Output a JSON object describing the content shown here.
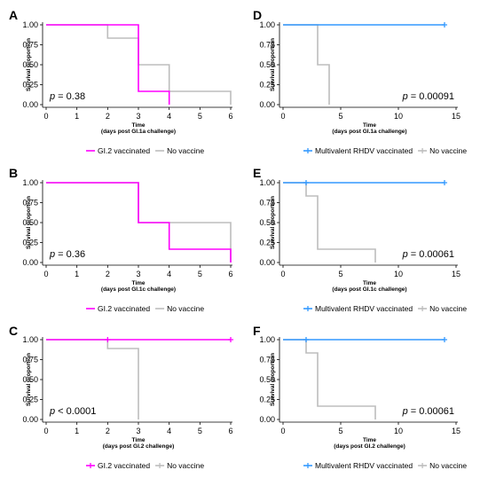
{
  "chart_data": [
    {
      "panel_letter": "A",
      "type": "line",
      "xlabel": "Time",
      "xlabel_sub": "(days post GI.1a challenge)",
      "ylabel": "Survival proportion",
      "xlim": [
        0,
        6
      ],
      "xticks": [
        0,
        1,
        2,
        3,
        4,
        5,
        6
      ],
      "ylim": [
        0,
        1
      ],
      "yticks": [
        "0.00",
        "0.25",
        "0.50",
        "0.75",
        "1.00"
      ],
      "p_prefix": "p",
      "p_op": "=",
      "p_value": "0.38",
      "series": [
        {
          "name": "GI.2 vaccinated",
          "color": "#ff00ff",
          "step_x": [
            0,
            3,
            3,
            4,
            4
          ],
          "step_y": [
            1,
            1,
            0.1667,
            0.1667,
            0
          ]
        },
        {
          "name": "No vaccine",
          "color": "#bdbdbd",
          "step_x": [
            0,
            2,
            2,
            3,
            3,
            4,
            4,
            6,
            6
          ],
          "step_y": [
            1,
            1,
            0.8333,
            0.8333,
            0.5,
            0.5,
            0.1667,
            0.1667,
            0
          ]
        }
      ]
    },
    {
      "panel_letter": "B",
      "type": "line",
      "xlabel": "Time",
      "xlabel_sub": "(days post GI.1c challenge)",
      "ylabel": "Survival proportion",
      "xlim": [
        0,
        6
      ],
      "xticks": [
        0,
        1,
        2,
        3,
        4,
        5,
        6
      ],
      "ylim": [
        0,
        1
      ],
      "yticks": [
        "0.00",
        "0.25",
        "0.50",
        "0.75",
        "1.00"
      ],
      "p_prefix": "p",
      "p_op": "=",
      "p_value": "0.36",
      "series": [
        {
          "name": "GI.2 vaccinated",
          "color": "#ff00ff",
          "step_x": [
            0,
            3,
            3,
            4,
            4,
            6,
            6
          ],
          "step_y": [
            1,
            1,
            0.5,
            0.5,
            0.1667,
            0.1667,
            0
          ]
        },
        {
          "name": "No vaccine",
          "color": "#bdbdbd",
          "step_x": [
            0,
            3,
            3,
            6,
            6
          ],
          "step_y": [
            1,
            1,
            0.5,
            0.5,
            0
          ]
        }
      ]
    },
    {
      "panel_letter": "C",
      "type": "line",
      "xlabel": "Time",
      "xlabel_sub": "(days post GI.2 challenge)",
      "ylabel": "Survival proportion",
      "xlim": [
        0,
        6
      ],
      "xticks": [
        0,
        1,
        2,
        3,
        4,
        5,
        6
      ],
      "ylim": [
        0,
        1
      ],
      "yticks": [
        "0.00",
        "0.25",
        "0.50",
        "0.75",
        "1.00"
      ],
      "p_prefix": "p",
      "p_op": "<",
      "p_value": "0.0001",
      "series": [
        {
          "name": "GI.2 vaccinated",
          "color": "#ff00ff",
          "step_x": [
            0,
            6
          ],
          "step_y": [
            1,
            1
          ],
          "censor_x": [
            2,
            6
          ],
          "censor_y": [
            1,
            1
          ]
        },
        {
          "name": "No vaccine",
          "color": "#bdbdbd",
          "step_x": [
            0,
            2,
            2,
            3,
            3
          ],
          "step_y": [
            1,
            1,
            0.8889,
            0.8889,
            0
          ]
        }
      ]
    },
    {
      "panel_letter": "D",
      "type": "line",
      "xlabel": "Time",
      "xlabel_sub": "(days post GI.1a challenge)",
      "ylabel": "Survival proportion",
      "xlim": [
        0,
        15
      ],
      "xticks": [
        0,
        5,
        10,
        15
      ],
      "ylim": [
        0,
        1
      ],
      "yticks": [
        "0.00",
        "0.25",
        "0.50",
        "0.75",
        "1.00"
      ],
      "p_prefix": "p",
      "p_op": "=",
      "p_value": "0.00091",
      "series": [
        {
          "name": "Multivalent RHDV vaccinated",
          "color": "#3399ff",
          "step_x": [
            0,
            14
          ],
          "step_y": [
            1,
            1
          ],
          "censor_x": [
            14
          ],
          "censor_y": [
            1
          ]
        },
        {
          "name": "No vaccine",
          "color": "#bdbdbd",
          "step_x": [
            0,
            3,
            3,
            4,
            4
          ],
          "step_y": [
            1,
            1,
            0.5,
            0.5,
            0
          ]
        }
      ]
    },
    {
      "panel_letter": "E",
      "type": "line",
      "xlabel": "Time",
      "xlabel_sub": "(days post GI.1c challenge)",
      "ylabel": "Survival proportion",
      "xlim": [
        0,
        15
      ],
      "xticks": [
        0,
        5,
        10,
        15
      ],
      "ylim": [
        0,
        1
      ],
      "yticks": [
        "0.00",
        "0.25",
        "0.50",
        "0.75",
        "1.00"
      ],
      "p_prefix": "p",
      "p_op": "=",
      "p_value": "0.00061",
      "series": [
        {
          "name": "Multivalent RHDV vaccinated",
          "color": "#3399ff",
          "step_x": [
            0,
            14
          ],
          "step_y": [
            1,
            1
          ],
          "censor_x": [
            2,
            14
          ],
          "censor_y": [
            1,
            1
          ]
        },
        {
          "name": "No vaccine",
          "color": "#bdbdbd",
          "step_x": [
            0,
            2,
            2,
            3,
            3,
            8,
            8
          ],
          "step_y": [
            1,
            1,
            0.8333,
            0.8333,
            0.1667,
            0.1667,
            0
          ]
        }
      ]
    },
    {
      "panel_letter": "F",
      "type": "line",
      "xlabel": "Time",
      "xlabel_sub": "(days post GI.2 challenge)",
      "ylabel": "Survival proportion",
      "xlim": [
        0,
        15
      ],
      "xticks": [
        0,
        5,
        10,
        15
      ],
      "ylim": [
        0,
        1
      ],
      "yticks": [
        "0.00",
        "0.25",
        "0.50",
        "0.75",
        "1.00"
      ],
      "p_prefix": "p",
      "p_op": "=",
      "p_value": "0.00061",
      "series": [
        {
          "name": "Multivalent RHDV vaccinated",
          "color": "#3399ff",
          "step_x": [
            0,
            14
          ],
          "step_y": [
            1,
            1
          ],
          "censor_x": [
            2,
            14
          ],
          "censor_y": [
            1,
            1
          ]
        },
        {
          "name": "No vaccine",
          "color": "#bdbdbd",
          "step_x": [
            0,
            2,
            2,
            3,
            3,
            8,
            8
          ],
          "step_y": [
            1,
            1,
            0.8333,
            0.8333,
            0.1667,
            0.1667,
            0
          ]
        }
      ]
    }
  ]
}
